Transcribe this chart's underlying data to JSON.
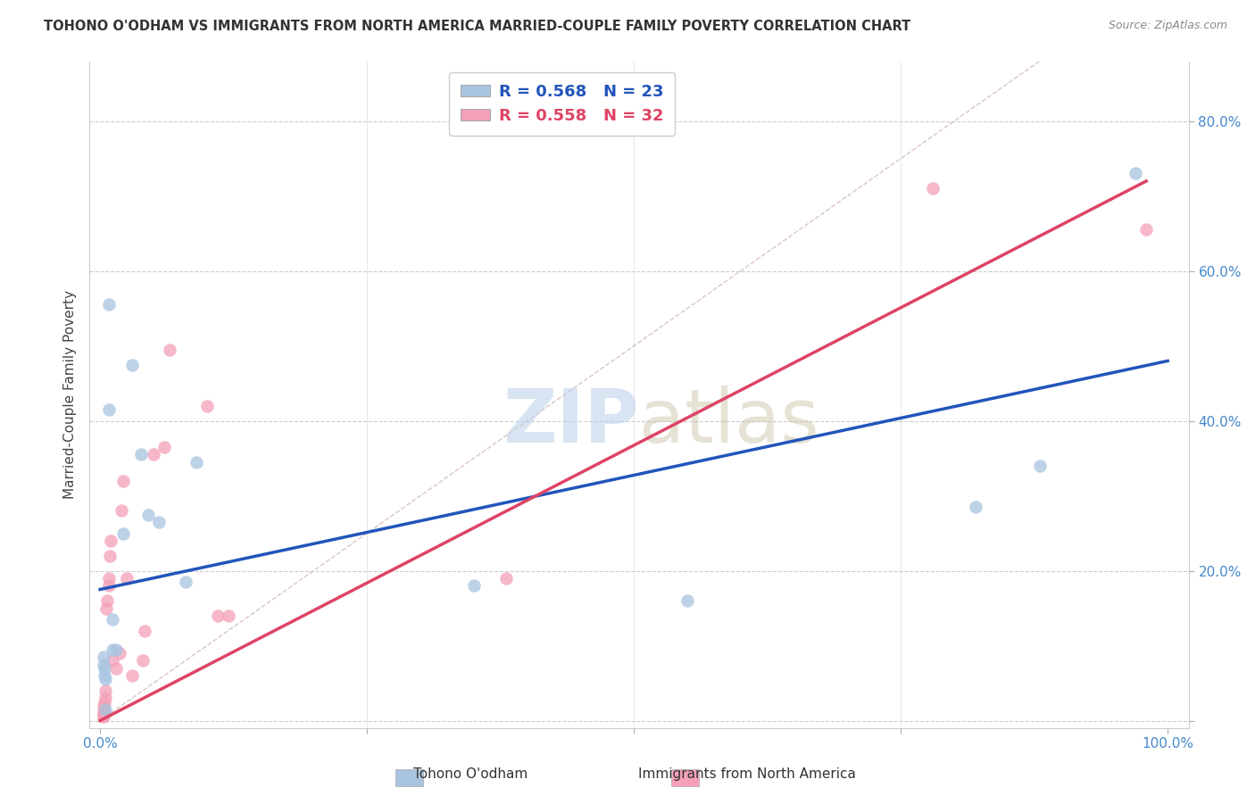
{
  "title": "TOHONO O'ODHAM VS IMMIGRANTS FROM NORTH AMERICA MARRIED-COUPLE FAMILY POVERTY CORRELATION CHART",
  "source": "Source: ZipAtlas.com",
  "ylabel": "Married-Couple Family Poverty",
  "xlabel_blue": "Tohono O'odham",
  "xlabel_pink": "Immigrants from North America",
  "xlim": [
    -0.01,
    1.02
  ],
  "ylim": [
    -0.01,
    0.88
  ],
  "xticks": [
    0.0,
    0.25,
    0.5,
    0.75,
    1.0
  ],
  "xtick_labels": [
    "0.0%",
    "",
    "",
    "",
    "100.0%"
  ],
  "yticks": [
    0.0,
    0.2,
    0.4,
    0.6,
    0.8
  ],
  "ytick_labels": [
    "",
    "20.0%",
    "40.0%",
    "60.0%",
    "80.0%"
  ],
  "legend_r_blue": "R = 0.568",
  "legend_n_blue": "N = 23",
  "legend_r_pink": "R = 0.558",
  "legend_n_pink": "N = 32",
  "blue_color": "#a8c4e0",
  "pink_color": "#f4a0b8",
  "blue_line_color": "#2255bb",
  "pink_line_color": "#dd4466",
  "diagonal_color": "#ccaaaa",
  "blue_scatter_x": [
    0.008,
    0.008,
    0.012,
    0.012,
    0.015,
    0.003,
    0.003,
    0.004,
    0.004,
    0.005,
    0.005,
    0.022,
    0.03,
    0.038,
    0.045,
    0.055,
    0.08,
    0.09,
    0.35,
    0.55,
    0.82,
    0.88,
    0.97
  ],
  "blue_scatter_y": [
    0.555,
    0.415,
    0.135,
    0.095,
    0.095,
    0.085,
    0.075,
    0.07,
    0.06,
    0.055,
    0.015,
    0.25,
    0.475,
    0.355,
    0.275,
    0.265,
    0.185,
    0.345,
    0.18,
    0.16,
    0.285,
    0.34,
    0.73
  ],
  "pink_scatter_x": [
    0.003,
    0.003,
    0.003,
    0.003,
    0.003,
    0.004,
    0.005,
    0.005,
    0.006,
    0.007,
    0.008,
    0.008,
    0.009,
    0.01,
    0.012,
    0.015,
    0.018,
    0.02,
    0.022,
    0.025,
    0.03,
    0.04,
    0.042,
    0.05,
    0.06,
    0.065,
    0.1,
    0.11,
    0.12,
    0.38,
    0.78,
    0.98
  ],
  "pink_scatter_y": [
    0.005,
    0.007,
    0.01,
    0.012,
    0.02,
    0.025,
    0.03,
    0.04,
    0.15,
    0.16,
    0.18,
    0.19,
    0.22,
    0.24,
    0.08,
    0.07,
    0.09,
    0.28,
    0.32,
    0.19,
    0.06,
    0.08,
    0.12,
    0.355,
    0.365,
    0.495,
    0.42,
    0.14,
    0.14,
    0.19,
    0.71,
    0.655
  ],
  "blue_line_x": [
    0.0,
    1.0
  ],
  "blue_line_y": [
    0.175,
    0.48
  ],
  "pink_line_x": [
    0.0,
    0.98
  ],
  "pink_line_y": [
    0.0,
    0.72
  ],
  "background_color": "#ffffff",
  "grid_color": "#cccccc"
}
